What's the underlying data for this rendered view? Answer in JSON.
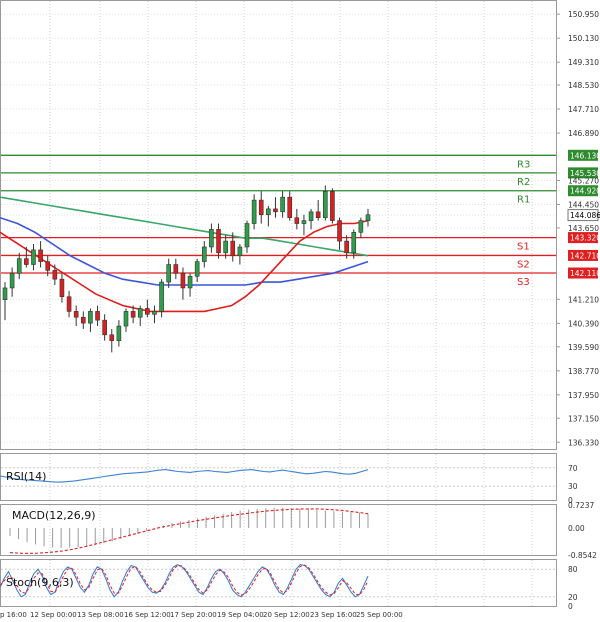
{
  "chart_data": {
    "type": "candlestick",
    "title": "",
    "main": {
      "ylim": [
        136.1,
        151.4
      ],
      "price_ticks": [
        "150.950",
        "150.130",
        "149.310",
        "148.530",
        "147.710",
        "146.890",
        "146.130",
        "145.530",
        "145.270",
        "144.920",
        "144.450",
        "144.086",
        "143.650",
        "143.320",
        "142.710",
        "142.110",
        "141.210",
        "140.390",
        "139.590",
        "138.770",
        "137.950",
        "137.150",
        "136.330"
      ],
      "current_price": 144.086,
      "levels": [
        {
          "name": "R3",
          "value": 146.13,
          "color": "#2e8b2e"
        },
        {
          "name": "R2",
          "value": 145.53,
          "color": "#2e8b2e"
        },
        {
          "name": "R1",
          "value": 144.92,
          "color": "#2e8b2e"
        },
        {
          "name": "S1",
          "value": 143.32,
          "color": "#e02020"
        },
        {
          "name": "S2",
          "value": 142.71,
          "color": "#e02020"
        },
        {
          "name": "S3",
          "value": 142.11,
          "color": "#e02020"
        }
      ],
      "candles": [
        [
          141.2,
          141.8,
          140.5,
          141.6
        ],
        [
          141.6,
          142.3,
          141.3,
          142.1
        ],
        [
          142.1,
          142.8,
          141.9,
          142.6
        ],
        [
          142.6,
          143.0,
          142.3,
          142.4
        ],
        [
          142.4,
          143.1,
          142.2,
          142.9
        ],
        [
          142.9,
          143.2,
          142.3,
          142.5
        ],
        [
          142.5,
          142.7,
          142.0,
          142.2
        ],
        [
          142.2,
          142.4,
          141.7,
          141.9
        ],
        [
          141.9,
          142.1,
          141.1,
          141.3
        ],
        [
          141.3,
          141.5,
          140.6,
          140.8
        ],
        [
          140.8,
          141.0,
          140.3,
          140.6
        ],
        [
          140.6,
          140.8,
          140.2,
          140.4
        ],
        [
          140.4,
          140.9,
          140.1,
          140.8
        ],
        [
          140.8,
          141.0,
          140.3,
          140.5
        ],
        [
          140.5,
          140.7,
          139.8,
          140.0
        ],
        [
          140.0,
          140.2,
          139.4,
          139.8
        ],
        [
          139.8,
          140.5,
          139.6,
          140.3
        ],
        [
          140.3,
          140.9,
          140.1,
          140.8
        ],
        [
          140.8,
          141.0,
          140.4,
          140.6
        ],
        [
          140.6,
          141.0,
          140.3,
          140.9
        ],
        [
          140.9,
          141.2,
          140.6,
          140.7
        ],
        [
          140.7,
          141.0,
          140.4,
          140.8
        ],
        [
          140.8,
          141.9,
          140.6,
          141.8
        ],
        [
          141.8,
          142.6,
          141.6,
          142.4
        ],
        [
          142.4,
          142.6,
          141.9,
          142.1
        ],
        [
          142.1,
          142.3,
          141.2,
          141.6
        ],
        [
          141.6,
          142.1,
          141.3,
          142.0
        ],
        [
          142.0,
          142.6,
          141.8,
          142.5
        ],
        [
          142.5,
          143.2,
          142.3,
          143.0
        ],
        [
          143.0,
          143.8,
          142.8,
          143.6
        ],
        [
          143.6,
          143.8,
          142.6,
          142.8
        ],
        [
          142.8,
          143.4,
          142.6,
          143.2
        ],
        [
          143.2,
          143.5,
          142.5,
          142.7
        ],
        [
          142.7,
          143.1,
          142.4,
          143.0
        ],
        [
          143.0,
          143.9,
          142.8,
          143.8
        ],
        [
          143.8,
          144.8,
          143.6,
          144.6
        ],
        [
          144.6,
          144.9,
          143.8,
          144.1
        ],
        [
          144.1,
          144.4,
          143.7,
          144.3
        ],
        [
          144.3,
          144.7,
          144.0,
          144.2
        ],
        [
          144.2,
          144.9,
          144.0,
          144.7
        ],
        [
          144.7,
          144.9,
          143.9,
          144.0
        ],
        [
          144.0,
          144.3,
          143.6,
          143.8
        ],
        [
          143.8,
          144.1,
          143.4,
          143.9
        ],
        [
          143.9,
          144.3,
          143.6,
          144.2
        ],
        [
          144.2,
          144.6,
          143.9,
          144.0
        ],
        [
          144.0,
          145.1,
          143.9,
          144.9
        ],
        [
          144.9,
          145.0,
          143.8,
          143.9
        ],
        [
          143.9,
          144.0,
          142.9,
          143.2
        ],
        [
          143.2,
          143.4,
          142.6,
          142.8
        ],
        [
          142.8,
          143.6,
          142.6,
          143.5
        ],
        [
          143.5,
          144.0,
          143.3,
          143.9
        ],
        [
          143.9,
          144.3,
          143.7,
          144.1
        ]
      ],
      "ma_red": [
        143.5,
        143.2,
        142.9,
        142.6,
        142.3,
        142.0,
        141.7,
        141.4,
        141.2,
        141.0,
        140.9,
        140.8,
        140.8,
        140.8,
        140.8,
        140.8,
        140.9,
        141.0,
        141.3,
        141.7,
        142.2,
        142.7,
        143.2,
        143.5,
        143.7,
        143.8,
        143.8,
        143.9
      ],
      "ma_green": [
        144.7,
        144.6,
        144.5,
        144.4,
        144.3,
        144.2,
        144.1,
        144.0,
        143.9,
        143.8,
        143.7,
        143.6,
        143.5,
        143.4,
        143.3,
        143.3,
        143.2,
        143.1,
        143.0,
        142.9,
        142.8,
        142.7
      ],
      "ma_blue": [
        144.0,
        143.8,
        143.5,
        143.1,
        142.7,
        142.4,
        142.1,
        141.9,
        141.8,
        141.7,
        141.7,
        141.7,
        141.7,
        141.7,
        141.7,
        141.8,
        141.8,
        141.9,
        142.0,
        142.1,
        142.3,
        142.5
      ]
    },
    "rsi": {
      "label": "RSI(14)",
      "ticks": [
        "70",
        "30",
        "0"
      ],
      "values": [
        52,
        50,
        47,
        45,
        44,
        43,
        42,
        41,
        40,
        39,
        39,
        40,
        41,
        43,
        45,
        47,
        49,
        51,
        53,
        55,
        57,
        58,
        59,
        60,
        61,
        63,
        65,
        66,
        64,
        62,
        61,
        60,
        62,
        63,
        64,
        62,
        61,
        60,
        62,
        64,
        65,
        66,
        64,
        62,
        61,
        63,
        65,
        63,
        61,
        59,
        57,
        58,
        60,
        62,
        61,
        59,
        57,
        56,
        58,
        62,
        66
      ]
    },
    "macd": {
      "label": "MACD(12,26,9)",
      "ticks": [
        "0.7237",
        "0.00",
        "-0.8542"
      ],
      "hist": [
        -0.25,
        -0.35,
        -0.45,
        -0.52,
        -0.58,
        -0.62,
        -0.63,
        -0.62,
        -0.6,
        -0.57,
        -0.53,
        -0.48,
        -0.42,
        -0.35,
        -0.27,
        -0.18,
        -0.09,
        0.0,
        0.08,
        0.15,
        0.2,
        0.25,
        0.3,
        0.35,
        0.4,
        0.45,
        0.5,
        0.55,
        0.58,
        0.6,
        0.62,
        0.63,
        0.64,
        0.62,
        0.6,
        0.58,
        0.56,
        0.55,
        0.53,
        0.52,
        0.5,
        0.48,
        0.45
      ],
      "signal": [
        -0.78,
        -0.8,
        -0.8,
        -0.78,
        -0.74,
        -0.68,
        -0.6,
        -0.5,
        -0.4,
        -0.3,
        -0.2,
        -0.1,
        0.0,
        0.08,
        0.15,
        0.22,
        0.28,
        0.34,
        0.4,
        0.45,
        0.5,
        0.54,
        0.57,
        0.59,
        0.6,
        0.6,
        0.58,
        0.55,
        0.5,
        0.45
      ]
    },
    "stoch": {
      "label": "Stoch(9,6,3)",
      "ticks": [
        "80",
        "20",
        "0"
      ],
      "k": [
        40,
        60,
        75,
        55,
        35,
        20,
        25,
        50,
        70,
        80,
        65,
        40,
        25,
        30,
        55,
        75,
        85,
        80,
        60,
        40,
        30,
        45,
        70,
        85,
        80,
        60,
        35,
        20,
        30,
        55,
        75,
        88,
        85,
        70,
        55,
        40,
        30,
        28,
        35,
        50,
        70,
        85,
        90,
        85,
        75,
        60,
        45,
        30,
        25,
        40,
        60,
        75,
        80,
        70,
        55,
        35,
        25,
        20,
        30,
        45,
        60,
        75,
        85,
        80,
        65,
        45,
        30,
        25,
        40,
        60,
        80,
        90,
        88,
        80,
        65,
        50,
        35,
        25,
        20,
        30,
        50,
        60,
        45,
        30,
        20,
        25,
        45,
        65
      ],
      "d": [
        45,
        55,
        65,
        60,
        45,
        30,
        28,
        40,
        60,
        72,
        70,
        50,
        32,
        30,
        45,
        65,
        80,
        82,
        68,
        48,
        35,
        40,
        60,
        78,
        82,
        68,
        45,
        28,
        28,
        45,
        65,
        82,
        86,
        76,
        60,
        45,
        35,
        30,
        32,
        45,
        62,
        80,
        88,
        87,
        78,
        65,
        50,
        36,
        28,
        35,
        52,
        68,
        78,
        74,
        62,
        44,
        30,
        24,
        26,
        38,
        52,
        68,
        80,
        82,
        70,
        52,
        36,
        28,
        34,
        52,
        72,
        86,
        89,
        83,
        70,
        55,
        40,
        30,
        24,
        27,
        40,
        55,
        50,
        38,
        26,
        24,
        36,
        55
      ]
    },
    "x_labels": [
      "p 16:00",
      "12 Sep 00:00",
      "13 Sep 08:00",
      "16 Sep 12:00",
      "17 Sep 20:00",
      "19 Sep 04:00",
      "20 Sep 12:00",
      "23 Sep 16:00",
      "25 Sep 00:00"
    ]
  }
}
